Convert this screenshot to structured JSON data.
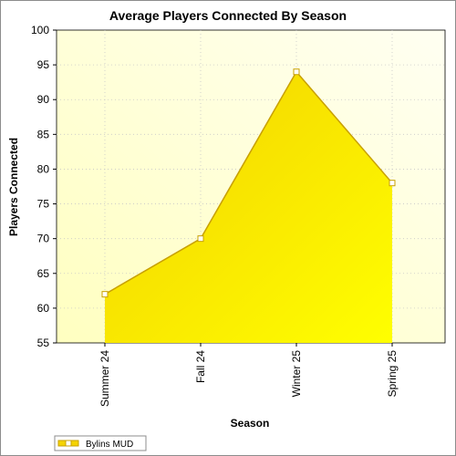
{
  "chart_data": {
    "type": "area",
    "title": "Average Players Connected By Season",
    "xlabel": "Season",
    "ylabel": "Players Connected",
    "categories": [
      "Summer 24",
      "Fall 24",
      "Winter 25",
      "Spring 25"
    ],
    "series": [
      {
        "name": "Bylins MUD",
        "values": [
          62,
          70,
          94,
          78
        ]
      }
    ],
    "ylim": [
      55,
      100
    ],
    "yticks": [
      55,
      60,
      65,
      70,
      75,
      80,
      85,
      90,
      95,
      100
    ],
    "grid": true,
    "legend": "bottom-left",
    "colors": {
      "plot_background": "#ffffe0",
      "area_fill_light": "#ffff00",
      "area_fill_dark": "#f2cf00",
      "line": "#c8a000",
      "grid": "#c8c8c8"
    }
  }
}
